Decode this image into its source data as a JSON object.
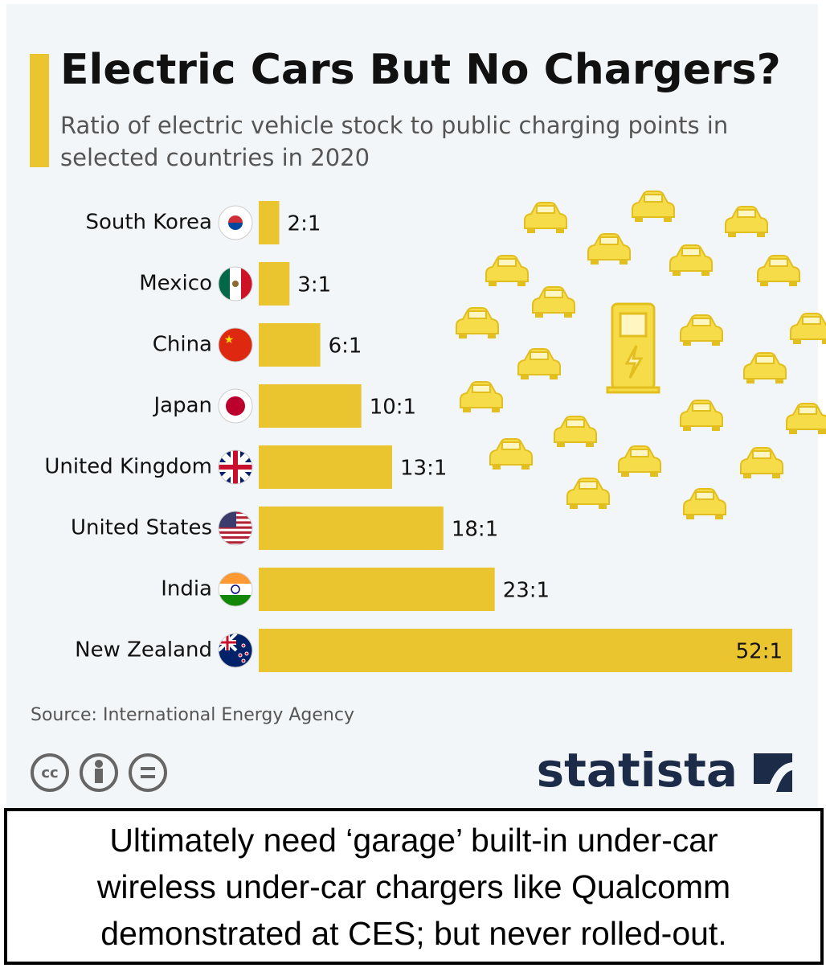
{
  "chart_data": {
    "type": "bar",
    "orientation": "horizontal",
    "title": "Electric Cars But No Chargers?",
    "subtitle": "Ratio of electric vehicle stock to public charging points in selected countries in 2020",
    "categories": [
      "South Korea",
      "Mexico",
      "China",
      "Japan",
      "United Kingdom",
      "United States",
      "India",
      "New Zealand"
    ],
    "values": [
      2,
      3,
      6,
      10,
      13,
      18,
      23,
      52
    ],
    "value_labels": [
      "2:1",
      "3:1",
      "6:1",
      "10:1",
      "13:1",
      "18:1",
      "23:1",
      "52:1"
    ],
    "color": "#ebc530",
    "source": "Source: International Energy Agency",
    "brand": "statista"
  },
  "caption": {
    "lines": [
      "Ultimately need ‘garage’ built-in under-car",
      "wireless under-car chargers like Qualcomm",
      "demonstrated at CES; but never rolled-out."
    ]
  }
}
